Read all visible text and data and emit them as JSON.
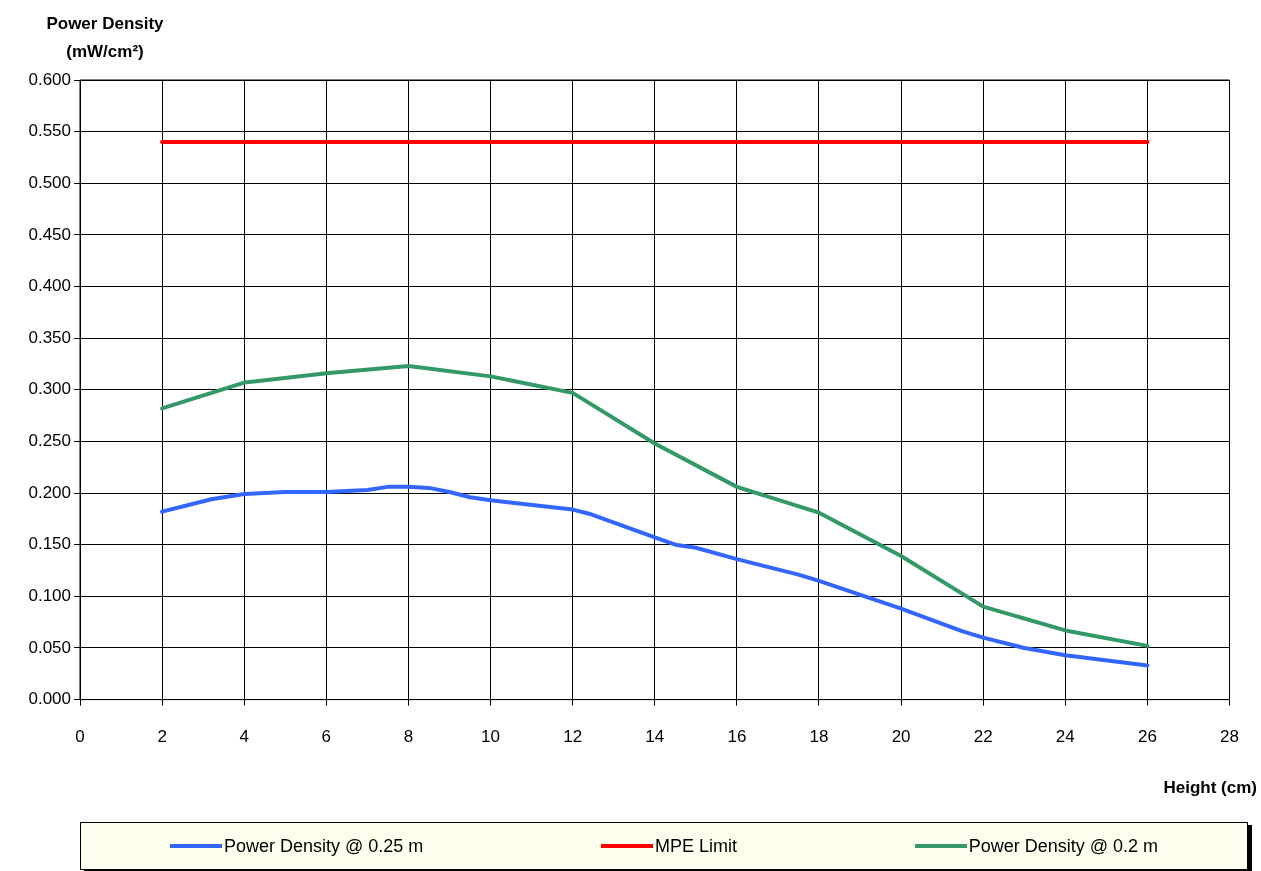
{
  "chart_data": {
    "type": "line",
    "ylabel": "Power Density (mW/cm²)",
    "xlabel": "Height (cm)",
    "xlim": [
      0,
      28
    ],
    "xticks": [
      0,
      2,
      4,
      6,
      8,
      10,
      12,
      14,
      16,
      18,
      20,
      22,
      24,
      26,
      28
    ],
    "ylim": [
      0,
      0.6
    ],
    "yticks": [
      {
        "value": 0,
        "label": "0.000"
      },
      {
        "value": 0.05,
        "label": "0.050"
      },
      {
        "value": 0.1,
        "label": "0.100"
      },
      {
        "value": 0.15,
        "label": "0.150"
      },
      {
        "value": 0.2,
        "label": "0.200"
      },
      {
        "value": 0.25,
        "label": "0.250"
      },
      {
        "value": 0.3,
        "label": "0.300"
      },
      {
        "value": 0.35,
        "label": "0.350"
      },
      {
        "value": 0.4,
        "label": "0.400"
      },
      {
        "value": 0.45,
        "label": "0.450"
      },
      {
        "value": 0.5,
        "label": "0.500"
      },
      {
        "value": 0.55,
        "label": "0.550"
      },
      {
        "value": 0.6,
        "label": "0.600"
      }
    ],
    "grid": true,
    "legend": "bottom",
    "marker": "none",
    "line_style": "solid",
    "series": [
      {
        "name": "Power Density @ 0.25 m",
        "color": "#3366ff",
        "x": [
          2,
          3.2,
          4,
          5,
          6,
          7,
          7.5,
          8,
          8.5,
          9,
          9.5,
          10,
          12,
          12.4,
          14,
          14.5,
          15,
          16,
          17.5,
          18,
          20,
          21.5,
          22,
          23,
          24,
          26
        ],
        "values": [
          0.182,
          0.194,
          0.199,
          0.201,
          0.201,
          0.203,
          0.206,
          0.206,
          0.205,
          0.201,
          0.196,
          0.193,
          0.184,
          0.18,
          0.157,
          0.15,
          0.147,
          0.136,
          0.121,
          0.115,
          0.088,
          0.066,
          0.06,
          0.05,
          0.043,
          0.033
        ]
      },
      {
        "name": "MPE Limit",
        "color": "#ff0000",
        "x": [
          2,
          26
        ],
        "values": [
          0.54,
          0.54
        ]
      },
      {
        "name": "Power Density @ 0.2 m",
        "color": "#339966",
        "x": [
          2,
          4,
          6,
          8,
          10,
          12,
          14,
          16,
          18,
          20,
          22,
          24,
          26
        ],
        "values": [
          0.282,
          0.307,
          0.316,
          0.323,
          0.313,
          0.297,
          0.248,
          0.206,
          0.181,
          0.139,
          0.09,
          0.067,
          0.052
        ]
      }
    ]
  }
}
